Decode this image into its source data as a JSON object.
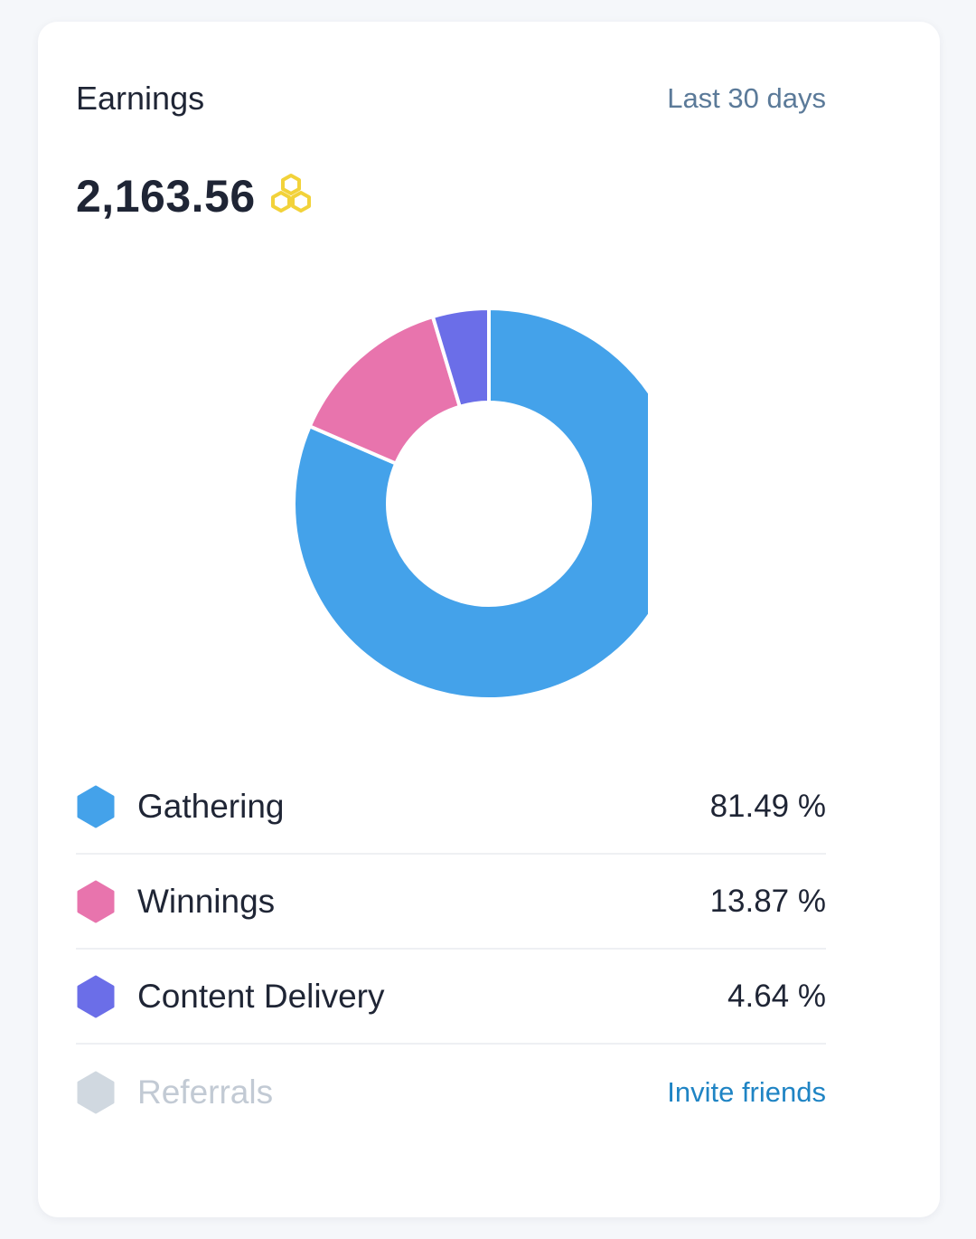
{
  "card": {
    "title": "Earnings",
    "period_link": "Last 30 days",
    "total": "2,163.56",
    "currency_icon": "honeycomb-icon"
  },
  "colors": {
    "gathering": "#44a2ea",
    "winnings": "#e874ad",
    "content_delivery": "#6b6ee8",
    "referrals": "#d0d8e0",
    "coin": "#f2d23a"
  },
  "legend": [
    {
      "label": "Gathering",
      "value": "81.49 %"
    },
    {
      "label": "Winnings",
      "value": "13.87 %"
    },
    {
      "label": "Content Delivery",
      "value": "4.64 %"
    },
    {
      "label": "Referrals",
      "action": "Invite friends"
    }
  ],
  "chart_data": {
    "type": "pie",
    "variant": "donut",
    "title": "",
    "categories": [
      "Gathering",
      "Winnings",
      "Content Delivery",
      "Referrals"
    ],
    "values": [
      81.49,
      13.87,
      4.64,
      0
    ],
    "unit": "%"
  }
}
